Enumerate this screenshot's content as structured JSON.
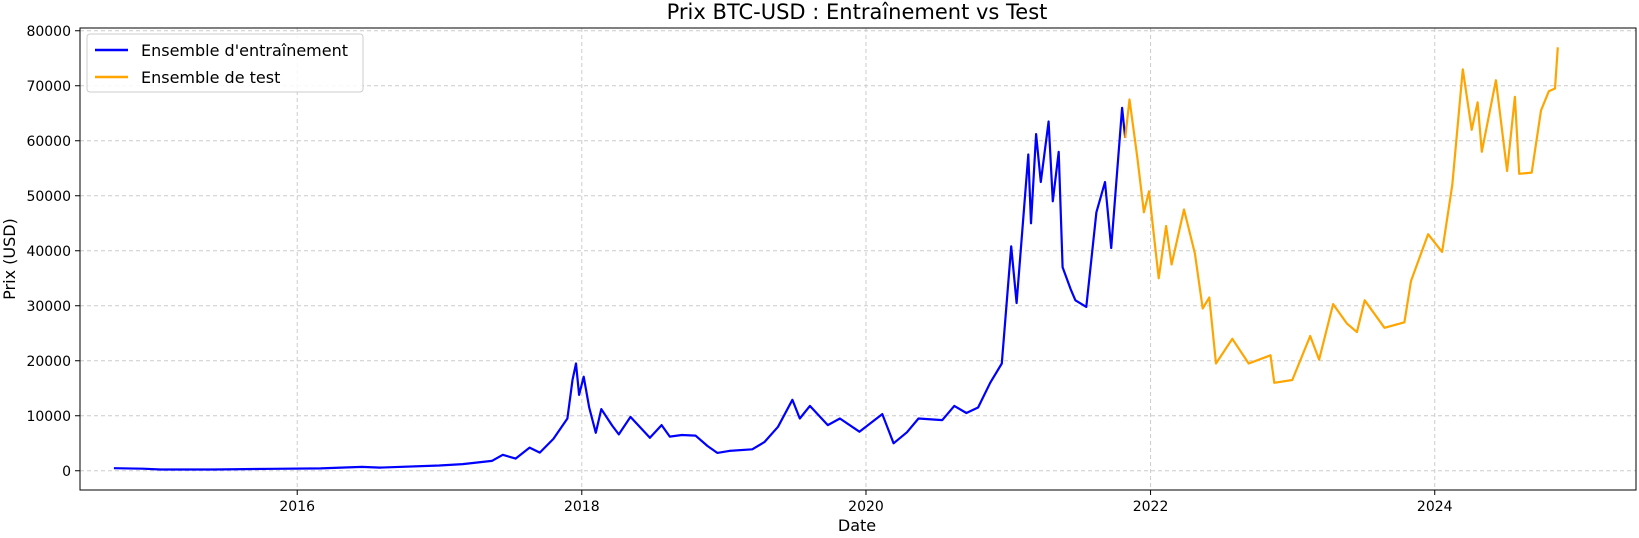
{
  "chart_data": {
    "type": "line",
    "title": "Prix BTC-USD : Entraînement vs Test",
    "xlabel": "Date",
    "ylabel": "Prix (USD)",
    "x_ticks": [
      "2016",
      "2018",
      "2020",
      "2022",
      "2024"
    ],
    "y_ticks": [
      "0",
      "10000",
      "20000",
      "30000",
      "40000",
      "50000",
      "60000",
      "70000",
      "80000"
    ],
    "xlim": [
      "2014-06-22",
      "2025-06-01"
    ],
    "ylim": [
      -3500,
      80500
    ],
    "grid": true,
    "legend_position": "top-left",
    "series": [
      {
        "name": "Ensemble d'entraînement",
        "color": "#0000ff",
        "points": [
          [
            "2014-09-17",
            460
          ],
          [
            "2014-12-01",
            380
          ],
          [
            "2015-01-15",
            220
          ],
          [
            "2015-06-01",
            230
          ],
          [
            "2015-11-01",
            350
          ],
          [
            "2016-03-01",
            420
          ],
          [
            "2016-06-15",
            700
          ],
          [
            "2016-08-01",
            580
          ],
          [
            "2016-12-31",
            960
          ],
          [
            "2017-03-01",
            1200
          ],
          [
            "2017-05-15",
            1800
          ],
          [
            "2017-06-12",
            2900
          ],
          [
            "2017-07-15",
            2200
          ],
          [
            "2017-08-20",
            4200
          ],
          [
            "2017-09-15",
            3300
          ],
          [
            "2017-10-20",
            5800
          ],
          [
            "2017-11-25",
            9500
          ],
          [
            "2017-12-08",
            16500
          ],
          [
            "2017-12-17",
            19500
          ],
          [
            "2017-12-25",
            13800
          ],
          [
            "2018-01-06",
            17100
          ],
          [
            "2018-01-20",
            11500
          ],
          [
            "2018-02-06",
            6900
          ],
          [
            "2018-02-20",
            11200
          ],
          [
            "2018-03-20",
            8200
          ],
          [
            "2018-04-06",
            6600
          ],
          [
            "2018-05-06",
            9800
          ],
          [
            "2018-06-25",
            6000
          ],
          [
            "2018-07-25",
            8300
          ],
          [
            "2018-08-15",
            6200
          ],
          [
            "2018-09-15",
            6500
          ],
          [
            "2018-10-20",
            6400
          ],
          [
            "2018-11-20",
            4500
          ],
          [
            "2018-12-15",
            3250
          ],
          [
            "2019-01-15",
            3600
          ],
          [
            "2019-03-15",
            3900
          ],
          [
            "2019-04-15",
            5200
          ],
          [
            "2019-05-20",
            8000
          ],
          [
            "2019-06-26",
            12900
          ],
          [
            "2019-07-15",
            9500
          ],
          [
            "2019-08-10",
            11800
          ],
          [
            "2019-09-25",
            8300
          ],
          [
            "2019-10-26",
            9500
          ],
          [
            "2019-12-15",
            7100
          ],
          [
            "2020-02-12",
            10300
          ],
          [
            "2020-03-12",
            5000
          ],
          [
            "2020-04-15",
            7000
          ],
          [
            "2020-05-15",
            9500
          ],
          [
            "2020-07-15",
            9200
          ],
          [
            "2020-08-15",
            11800
          ],
          [
            "2020-09-15",
            10500
          ],
          [
            "2020-10-15",
            11500
          ],
          [
            "2020-11-15",
            16000
          ],
          [
            "2020-12-15",
            19500
          ],
          [
            "2021-01-08",
            40800
          ],
          [
            "2021-01-22",
            30500
          ],
          [
            "2021-02-21",
            57500
          ],
          [
            "2021-02-28",
            45000
          ],
          [
            "2021-03-13",
            61200
          ],
          [
            "2021-03-25",
            52500
          ],
          [
            "2021-04-14",
            63500
          ],
          [
            "2021-04-25",
            49000
          ],
          [
            "2021-05-10",
            58000
          ],
          [
            "2021-05-20",
            37000
          ],
          [
            "2021-06-10",
            33000
          ],
          [
            "2021-06-22",
            31000
          ],
          [
            "2021-07-20",
            29800
          ],
          [
            "2021-08-15",
            47000
          ],
          [
            "2021-09-06",
            52500
          ],
          [
            "2021-09-22",
            40500
          ],
          [
            "2021-10-20",
            66000
          ],
          [
            "2021-10-28",
            60500
          ]
        ]
      },
      {
        "name": "Ensemble de test",
        "color": "#ffa500",
        "points": [
          [
            "2021-10-28",
            60500
          ],
          [
            "2021-11-08",
            67500
          ],
          [
            "2021-11-28",
            57000
          ],
          [
            "2021-12-15",
            47000
          ],
          [
            "2021-12-28",
            50800
          ],
          [
            "2022-01-22",
            35000
          ],
          [
            "2022-02-10",
            44500
          ],
          [
            "2022-02-24",
            37500
          ],
          [
            "2022-03-28",
            47500
          ],
          [
            "2022-04-25",
            39500
          ],
          [
            "2022-05-15",
            29500
          ],
          [
            "2022-06-01",
            31500
          ],
          [
            "2022-06-18",
            19500
          ],
          [
            "2022-07-30",
            24000
          ],
          [
            "2022-09-10",
            19500
          ],
          [
            "2022-11-05",
            21000
          ],
          [
            "2022-11-15",
            16000
          ],
          [
            "2022-12-31",
            16500
          ],
          [
            "2023-02-15",
            24500
          ],
          [
            "2023-03-10",
            20200
          ],
          [
            "2023-04-15",
            30300
          ],
          [
            "2023-05-20",
            26800
          ],
          [
            "2023-06-15",
            25200
          ],
          [
            "2023-07-05",
            31000
          ],
          [
            "2023-08-25",
            26000
          ],
          [
            "2023-10-15",
            27000
          ],
          [
            "2023-11-01",
            34500
          ],
          [
            "2023-12-15",
            43000
          ],
          [
            "2024-01-20",
            39800
          ],
          [
            "2024-02-15",
            52000
          ],
          [
            "2024-03-13",
            73000
          ],
          [
            "2024-04-05",
            62000
          ],
          [
            "2024-04-20",
            67000
          ],
          [
            "2024-05-01",
            58000
          ],
          [
            "2024-06-06",
            71000
          ],
          [
            "2024-07-05",
            54500
          ],
          [
            "2024-07-25",
            68000
          ],
          [
            "2024-08-05",
            54000
          ],
          [
            "2024-09-06",
            54200
          ],
          [
            "2024-09-30",
            65500
          ],
          [
            "2024-10-20",
            69000
          ],
          [
            "2024-11-05",
            69500
          ],
          [
            "2024-11-12",
            77000
          ]
        ]
      }
    ]
  }
}
